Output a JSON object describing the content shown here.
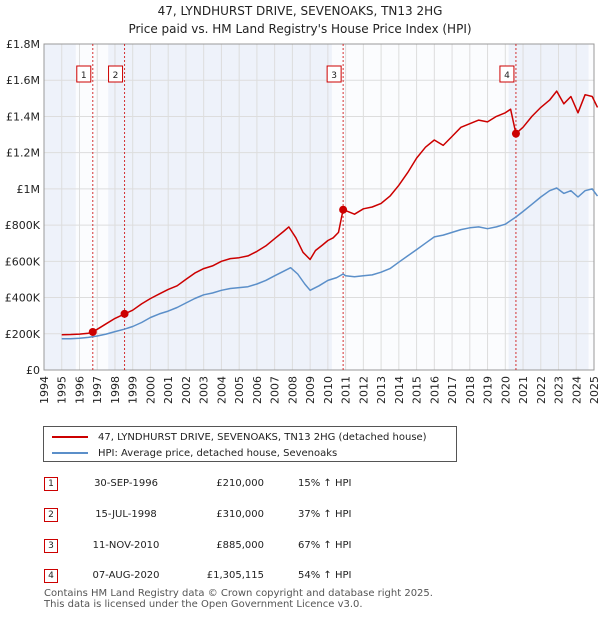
{
  "header": {
    "title_line1": "47, LYNDHURST DRIVE, SEVENOAKS, TN13 2HG",
    "title_line2": "Price paid vs. HM Land Registry's House Price Index (HPI)"
  },
  "colors": {
    "property": "#cc0000",
    "hpi": "#5b8fc9",
    "grid": "#dddddd",
    "plot_bg": "#eef2fa",
    "marker_border": "#cc0000"
  },
  "chart_data": {
    "type": "line",
    "title": "47, LYNDHURST DRIVE, SEVENOAKS, TN13 2HG",
    "subtitle": "Price paid vs. HM Land Registry's House Price Index (HPI)",
    "xlim": [
      1995,
      2025.3
    ],
    "ylim": [
      0,
      1800000
    ],
    "y_ticks": [
      {
        "value": 0,
        "label": "£0"
      },
      {
        "value": 200000,
        "label": "£200K"
      },
      {
        "value": 400000,
        "label": "£400K"
      },
      {
        "value": 600000,
        "label": "£600K"
      },
      {
        "value": 800000,
        "label": "£800K"
      },
      {
        "value": 1000000,
        "label": "£1M"
      },
      {
        "value": 1200000,
        "label": "£1.2M"
      },
      {
        "value": 1400000,
        "label": "£1.4M"
      },
      {
        "value": 1600000,
        "label": "£1.6M"
      },
      {
        "value": 1800000,
        "label": "£1.8M"
      }
    ],
    "x_ticks": [
      "1994",
      "1995",
      "1996",
      "1997",
      "1998",
      "1999",
      "2000",
      "2001",
      "2002",
      "2003",
      "2004",
      "2005",
      "2006",
      "2007",
      "2008",
      "2009",
      "2010",
      "2011",
      "2012",
      "2013",
      "2014",
      "2015",
      "2016",
      "2017",
      "2018",
      "2019",
      "2020",
      "2021",
      "2022",
      "2023",
      "2024",
      "2025"
    ],
    "grid": true,
    "shaded_ranges": [
      [
        1996.75,
        1998.54
      ],
      [
        2010.86,
        2020.6
      ],
      [
        2025.0,
        2025.3
      ]
    ],
    "series": [
      {
        "name": "47, LYNDHURST DRIVE, SEVENOAKS, TN13 2HG (detached house)",
        "color": "#cc0000",
        "points": [
          [
            1995.0,
            195000
          ],
          [
            1995.5,
            196000
          ],
          [
            1996.0,
            198000
          ],
          [
            1996.5,
            203000
          ],
          [
            1996.75,
            210000
          ],
          [
            1997.0,
            225000
          ],
          [
            1997.5,
            255000
          ],
          [
            1998.0,
            285000
          ],
          [
            1998.54,
            310000
          ],
          [
            1999.0,
            330000
          ],
          [
            1999.5,
            365000
          ],
          [
            2000.0,
            395000
          ],
          [
            2000.5,
            420000
          ],
          [
            2001.0,
            445000
          ],
          [
            2001.5,
            465000
          ],
          [
            2002.0,
            500000
          ],
          [
            2002.5,
            535000
          ],
          [
            2003.0,
            560000
          ],
          [
            2003.5,
            575000
          ],
          [
            2004.0,
            600000
          ],
          [
            2004.5,
            615000
          ],
          [
            2005.0,
            620000
          ],
          [
            2005.5,
            630000
          ],
          [
            2006.0,
            655000
          ],
          [
            2006.5,
            685000
          ],
          [
            2007.0,
            725000
          ],
          [
            2007.5,
            765000
          ],
          [
            2007.8,
            790000
          ],
          [
            2008.2,
            730000
          ],
          [
            2008.6,
            650000
          ],
          [
            2009.0,
            610000
          ],
          [
            2009.3,
            660000
          ],
          [
            2009.7,
            690000
          ],
          [
            2010.0,
            715000
          ],
          [
            2010.3,
            730000
          ],
          [
            2010.6,
            760000
          ],
          [
            2010.86,
            885000
          ],
          [
            2011.0,
            880000
          ],
          [
            2011.5,
            860000
          ],
          [
            2012.0,
            890000
          ],
          [
            2012.5,
            900000
          ],
          [
            2013.0,
            920000
          ],
          [
            2013.5,
            960000
          ],
          [
            2014.0,
            1020000
          ],
          [
            2014.5,
            1090000
          ],
          [
            2015.0,
            1170000
          ],
          [
            2015.5,
            1230000
          ],
          [
            2016.0,
            1270000
          ],
          [
            2016.5,
            1240000
          ],
          [
            2017.0,
            1290000
          ],
          [
            2017.5,
            1340000
          ],
          [
            2018.0,
            1360000
          ],
          [
            2018.5,
            1380000
          ],
          [
            2019.0,
            1370000
          ],
          [
            2019.5,
            1400000
          ],
          [
            2020.0,
            1420000
          ],
          [
            2020.3,
            1440000
          ],
          [
            2020.6,
            1305115
          ],
          [
            2021.0,
            1340000
          ],
          [
            2021.5,
            1400000
          ],
          [
            2022.0,
            1450000
          ],
          [
            2022.5,
            1490000
          ],
          [
            2022.9,
            1540000
          ],
          [
            2023.3,
            1470000
          ],
          [
            2023.7,
            1510000
          ],
          [
            2024.1,
            1420000
          ],
          [
            2024.5,
            1520000
          ],
          [
            2024.9,
            1510000
          ],
          [
            2025.2,
            1450000
          ]
        ]
      },
      {
        "name": "HPI: Average price, detached house, Sevenoaks",
        "color": "#5b8fc9",
        "points": [
          [
            1995.0,
            172000
          ],
          [
            1995.5,
            172000
          ],
          [
            1996.0,
            175000
          ],
          [
            1996.5,
            180000
          ],
          [
            1997.0,
            188000
          ],
          [
            1997.5,
            198000
          ],
          [
            1998.0,
            212000
          ],
          [
            1998.5,
            225000
          ],
          [
            1999.0,
            240000
          ],
          [
            1999.5,
            262000
          ],
          [
            2000.0,
            290000
          ],
          [
            2000.5,
            310000
          ],
          [
            2001.0,
            325000
          ],
          [
            2001.5,
            345000
          ],
          [
            2002.0,
            370000
          ],
          [
            2002.5,
            395000
          ],
          [
            2003.0,
            415000
          ],
          [
            2003.5,
            425000
          ],
          [
            2004.0,
            440000
          ],
          [
            2004.5,
            450000
          ],
          [
            2005.0,
            455000
          ],
          [
            2005.5,
            460000
          ],
          [
            2006.0,
            475000
          ],
          [
            2006.5,
            495000
          ],
          [
            2007.0,
            520000
          ],
          [
            2007.5,
            545000
          ],
          [
            2007.9,
            565000
          ],
          [
            2008.3,
            530000
          ],
          [
            2008.7,
            475000
          ],
          [
            2009.0,
            440000
          ],
          [
            2009.5,
            465000
          ],
          [
            2010.0,
            495000
          ],
          [
            2010.5,
            510000
          ],
          [
            2010.86,
            530000
          ],
          [
            2011.0,
            520000
          ],
          [
            2011.5,
            515000
          ],
          [
            2012.0,
            520000
          ],
          [
            2012.5,
            525000
          ],
          [
            2013.0,
            540000
          ],
          [
            2013.5,
            560000
          ],
          [
            2014.0,
            595000
          ],
          [
            2014.5,
            630000
          ],
          [
            2015.0,
            665000
          ],
          [
            2015.5,
            700000
          ],
          [
            2016.0,
            735000
          ],
          [
            2016.5,
            745000
          ],
          [
            2017.0,
            760000
          ],
          [
            2017.5,
            775000
          ],
          [
            2018.0,
            785000
          ],
          [
            2018.5,
            790000
          ],
          [
            2019.0,
            780000
          ],
          [
            2019.5,
            790000
          ],
          [
            2020.0,
            805000
          ],
          [
            2020.6,
            845000
          ],
          [
            2021.0,
            875000
          ],
          [
            2021.5,
            915000
          ],
          [
            2022.0,
            955000
          ],
          [
            2022.5,
            990000
          ],
          [
            2022.9,
            1005000
          ],
          [
            2023.3,
            975000
          ],
          [
            2023.7,
            990000
          ],
          [
            2024.1,
            955000
          ],
          [
            2024.5,
            990000
          ],
          [
            2024.9,
            1000000
          ],
          [
            2025.2,
            960000
          ]
        ]
      }
    ],
    "sales": [
      {
        "num": "1",
        "x": 1996.75,
        "value": 210000
      },
      {
        "num": "2",
        "x": 1998.54,
        "value": 310000
      },
      {
        "num": "3",
        "x": 2010.86,
        "value": 885000
      },
      {
        "num": "4",
        "x": 2020.6,
        "value": 1305115
      }
    ]
  },
  "legend": {
    "property_label": "47, LYNDHURST DRIVE, SEVENOAKS, TN13 2HG (detached house)",
    "hpi_label": "HPI: Average price, detached house, Sevenoaks"
  },
  "transactions": [
    {
      "num": "1",
      "date": "30-SEP-1996",
      "price": "£210,000",
      "hpi": "15% ↑ HPI"
    },
    {
      "num": "2",
      "date": "15-JUL-1998",
      "price": "£310,000",
      "hpi": "37% ↑ HPI"
    },
    {
      "num": "3",
      "date": "11-NOV-2010",
      "price": "£885,000",
      "hpi": "67% ↑ HPI"
    },
    {
      "num": "4",
      "date": "07-AUG-2020",
      "price": "£1,305,115",
      "hpi": "54% ↑ HPI"
    }
  ],
  "footer": {
    "line1": "Contains HM Land Registry data © Crown copyright and database right 2025.",
    "line2": "This data is licensed under the Open Government Licence v3.0."
  }
}
